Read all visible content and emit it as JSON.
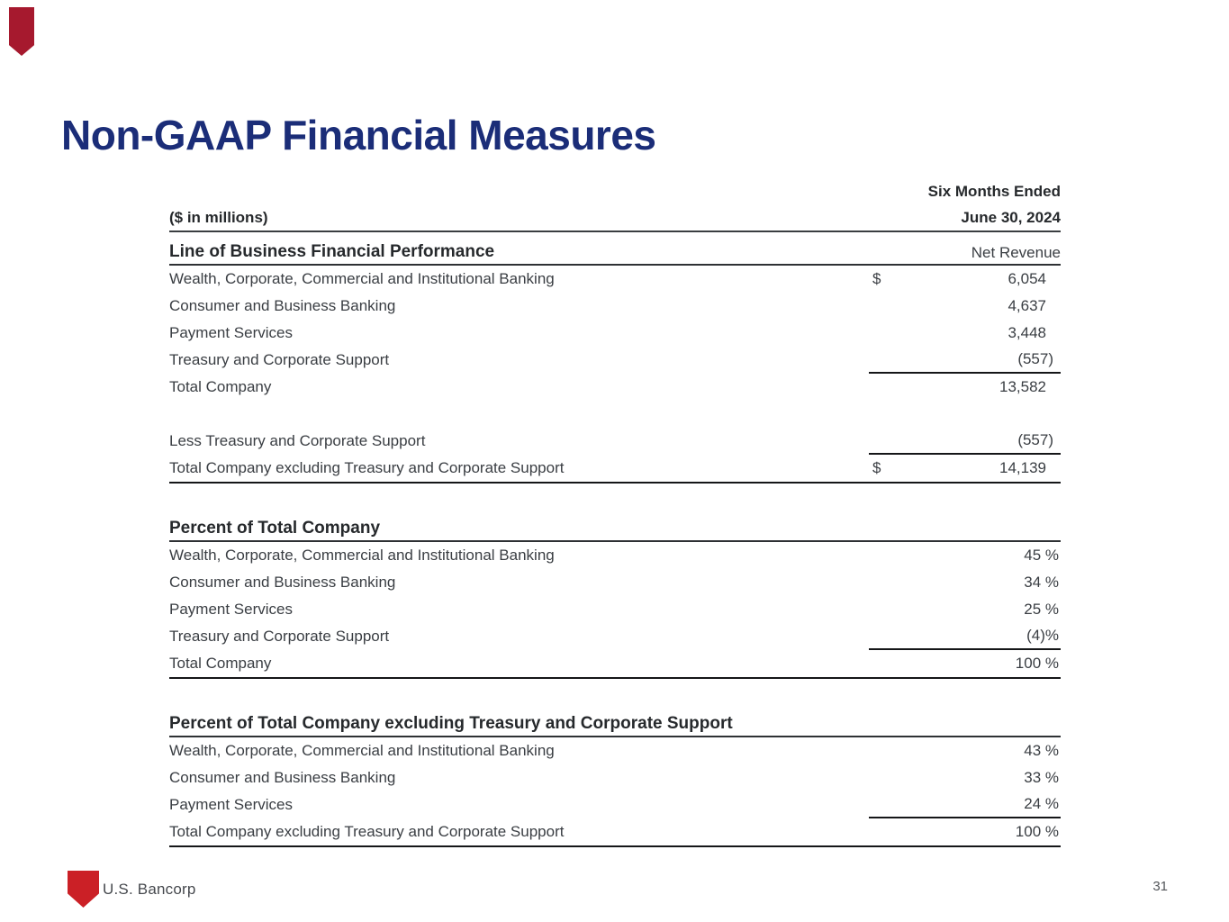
{
  "slide": {
    "title": "Non-GAAP Financial Measures",
    "footer_brand": "U.S. Bancorp",
    "page_number": "31"
  },
  "colors": {
    "title_navy": "#1b2d78",
    "brand_red": "#cb2026",
    "accent_red": "#a6192e",
    "text": "#3a3e43",
    "rule_dark": "#151618"
  },
  "icons": {
    "corner_mark": "us-bancorp-shield-accent",
    "footer_logo": "us-bancorp-shield-logo"
  },
  "table": {
    "period_label": "Six Months Ended",
    "units_label": "($ in millions)",
    "date_label": "June 30, 2024",
    "sections": [
      {
        "heading": "Line of Business Financial Performance",
        "column_label": "Net Revenue",
        "rows": [
          {
            "label": "Wealth, Corporate, Commercial and Institutional Banking",
            "currency": "$",
            "value": "6,054"
          },
          {
            "label": "Consumer and Business Banking",
            "value": "4,637"
          },
          {
            "label": "Payment Services",
            "value": "3,448"
          },
          {
            "label": "Treasury and Corporate Support",
            "value": "(557)",
            "underline": true
          },
          {
            "label": "Total Company",
            "value": "13,582"
          },
          {
            "spacer": true
          },
          {
            "label": "Less Treasury and Corporate Support",
            "value": "(557)",
            "underline": true
          },
          {
            "label": "Total Company excluding Treasury and Corporate Support",
            "currency": "$",
            "value": "14,139",
            "total": true
          }
        ]
      },
      {
        "heading": "Percent of Total Company",
        "column_label": "",
        "rows": [
          {
            "label": "Wealth, Corporate, Commercial and Institutional Banking",
            "value": "45 %"
          },
          {
            "label": "Consumer and Business Banking",
            "value": "34 %"
          },
          {
            "label": "Payment Services",
            "value": "25 %"
          },
          {
            "label": "Treasury and Corporate Support",
            "value": "(4)%",
            "underline": true
          },
          {
            "label": "Total Company",
            "value": "100 %",
            "total": true
          }
        ]
      },
      {
        "heading": "Percent of Total Company excluding Treasury and Corporate Support",
        "column_label": "",
        "rows": [
          {
            "label": "Wealth, Corporate, Commercial and Institutional Banking",
            "value": "43 %"
          },
          {
            "label": "Consumer and Business Banking",
            "value": "33 %"
          },
          {
            "label": "Payment Services",
            "value": "24 %",
            "underline": true
          },
          {
            "label": "Total Company excluding Treasury and Corporate Support",
            "value": "100 %",
            "total": true
          }
        ]
      }
    ]
  }
}
